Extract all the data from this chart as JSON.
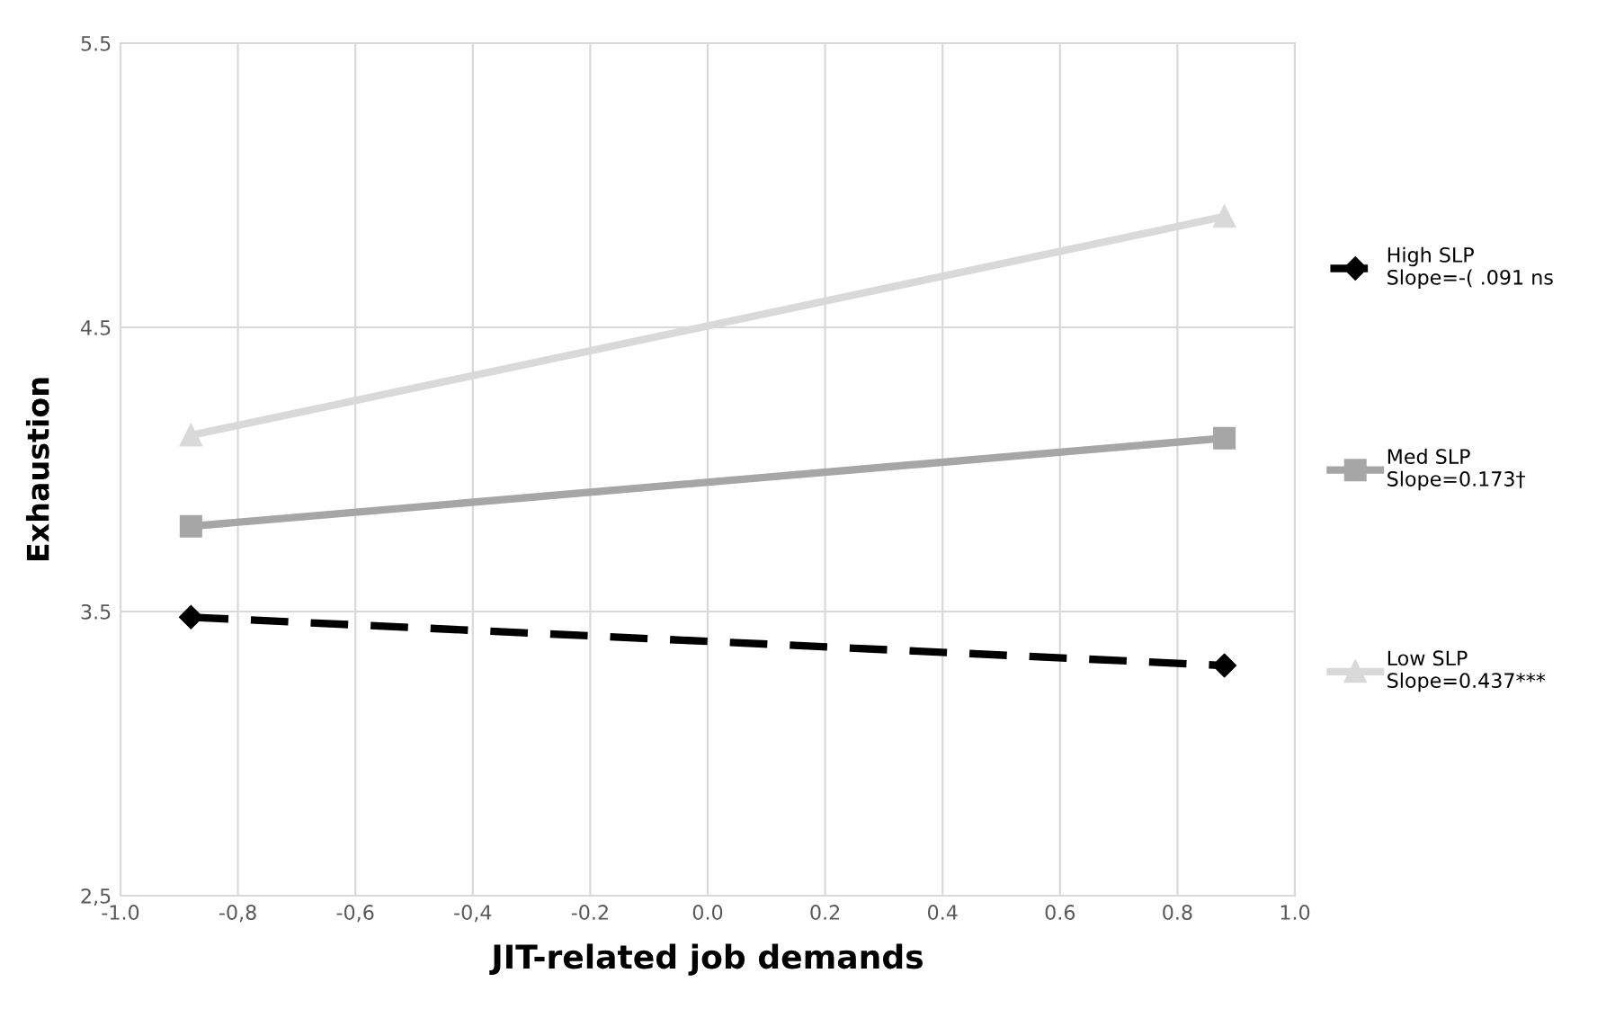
{
  "chart_data": {
    "type": "line",
    "xlabel": "JIT-related job demands",
    "ylabel": "Exhaustion",
    "xlim": [
      -1.0,
      1.0
    ],
    "ylim": [
      2.5,
      5.5
    ],
    "xticks": [
      {
        "value": -1.0,
        "label": "-1.0"
      },
      {
        "value": -0.8,
        "label": "-0,8"
      },
      {
        "value": -0.6,
        "label": "-0,6"
      },
      {
        "value": -0.4,
        "label": "-0,4"
      },
      {
        "value": -0.2,
        "label": "-0.2"
      },
      {
        "value": 0.0,
        "label": "0.0"
      },
      {
        "value": 0.2,
        "label": "0.2"
      },
      {
        "value": 0.4,
        "label": "0.4"
      },
      {
        "value": 0.6,
        "label": "0.6"
      },
      {
        "value": 0.8,
        "label": "0.8"
      },
      {
        "value": 1.0,
        "label": "1.0"
      }
    ],
    "yticks": [
      {
        "value": 2.5,
        "label": "2,5"
      },
      3.5,
      4.5,
      5.5
    ],
    "grid": true,
    "legend": "right",
    "x": [
      -0.88,
      0.88
    ],
    "series": [
      {
        "name": "High SLP\nSlope=-( .091 ns",
        "color": "#000000",
        "values": [
          3.48,
          3.31
        ],
        "marker": "diamond",
        "line_style": "dashed"
      },
      {
        "name": "Med SLP\nSlope=0.173†",
        "color": "#a6a6a6",
        "values": [
          3.8,
          4.11
        ],
        "marker": "square",
        "line_style": "solid"
      },
      {
        "name": "Low SLP\nSlope=0.437***",
        "color": "#d9d9d9",
        "values": [
          4.12,
          4.89
        ],
        "marker": "triangle",
        "line_style": "solid"
      }
    ]
  }
}
